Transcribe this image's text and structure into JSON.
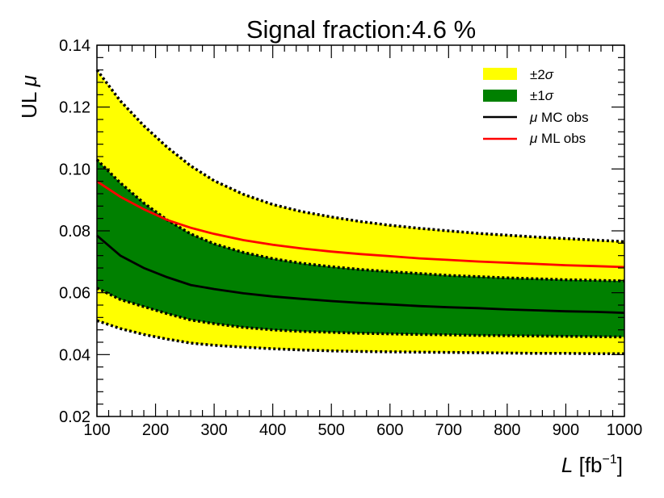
{
  "chart_data": {
    "type": "line",
    "title": "Signal fraction:4.6 %",
    "xlabel": {
      "base": "L",
      "unit_open": " [fb",
      "unit_exp": "−1",
      "unit_close": "]"
    },
    "ylabel": {
      "base": "UL ",
      "symbol": "μ"
    },
    "xlim": [
      100,
      1000
    ],
    "ylim": [
      0.02,
      0.14
    ],
    "x_ticks": [
      100,
      200,
      300,
      400,
      500,
      600,
      700,
      800,
      900,
      1000
    ],
    "x_tick_labels": [
      "100",
      "200",
      "300",
      "400",
      "500",
      "600",
      "700",
      "800",
      "900",
      "1000"
    ],
    "y_ticks": [
      0.02,
      0.04,
      0.06,
      0.08,
      0.1,
      0.12,
      0.14
    ],
    "y_tick_labels": [
      "0.02",
      "0.04",
      "0.06",
      "0.08",
      "0.10",
      "0.12",
      "0.14"
    ],
    "grid": false,
    "legend_position": "top-right",
    "x": [
      100,
      140,
      180,
      220,
      260,
      300,
      350,
      400,
      450,
      500,
      550,
      600,
      650,
      700,
      750,
      800,
      850,
      900,
      950,
      1000
    ],
    "bands": [
      {
        "name": "±2σ",
        "name_base": "±2",
        "name_symbol": "σ",
        "color": "#ffff00",
        "lower": [
          0.051,
          0.0484,
          0.0465,
          0.045,
          0.0437,
          0.043,
          0.0424,
          0.0419,
          0.0415,
          0.0412,
          0.041,
          0.0409,
          0.0408,
          0.0407,
          0.0406,
          0.0405,
          0.0404,
          0.0404,
          0.0403,
          0.0403
        ],
        "upper": [
          0.132,
          0.122,
          0.114,
          0.107,
          0.101,
          0.0962,
          0.0918,
          0.0885,
          0.0862,
          0.0845,
          0.083,
          0.0818,
          0.0808,
          0.08,
          0.0792,
          0.0786,
          0.078,
          0.0775,
          0.077,
          0.0765
        ]
      },
      {
        "name": "±1σ",
        "name_base": "±1",
        "name_symbol": "σ",
        "color": "#008000",
        "lower": [
          0.0615,
          0.0578,
          0.0555,
          0.0532,
          0.0512,
          0.05,
          0.0488,
          0.048,
          0.0475,
          0.0472,
          0.0469,
          0.0467,
          0.0465,
          0.0464,
          0.0462,
          0.0461,
          0.046,
          0.0459,
          0.0458,
          0.0457
        ],
        "upper": [
          0.103,
          0.0955,
          0.089,
          0.0835,
          0.079,
          0.0758,
          0.073,
          0.071,
          0.0695,
          0.0684,
          0.0675,
          0.0668,
          0.0662,
          0.0656,
          0.0652,
          0.0648,
          0.0645,
          0.0642,
          0.064,
          0.0638
        ]
      }
    ],
    "series": [
      {
        "name": "μ MC obs",
        "name_symbol": "μ",
        "name_rest": " MC obs",
        "color": "#000000",
        "values": [
          0.0785,
          0.072,
          0.068,
          0.065,
          0.0625,
          0.0612,
          0.0598,
          0.0588,
          0.058,
          0.0573,
          0.0567,
          0.0562,
          0.0557,
          0.0553,
          0.055,
          0.0546,
          0.0543,
          0.054,
          0.0538,
          0.0535
        ]
      },
      {
        "name": "μ ML obs",
        "name_symbol": "μ",
        "name_rest": " ML obs",
        "color": "#ff0000",
        "values": [
          0.096,
          0.091,
          0.087,
          0.0835,
          0.081,
          0.079,
          0.077,
          0.0755,
          0.0743,
          0.0733,
          0.0725,
          0.0718,
          0.0711,
          0.0706,
          0.0701,
          0.0697,
          0.0693,
          0.0689,
          0.0686,
          0.0683
        ]
      }
    ]
  }
}
